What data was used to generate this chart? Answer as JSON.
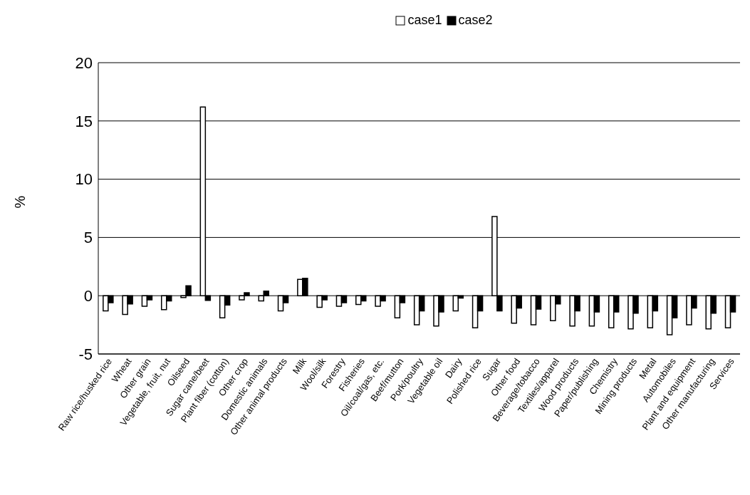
{
  "chart_data": {
    "type": "bar",
    "ylabel": "%",
    "categories": [
      "Raw rice/husked rice",
      "Wheat",
      "Other grain",
      "Vegetable, fruit, nut",
      "Oilseed",
      "Sugar cane/beet",
      "Plant fiber (cotton)",
      "Other crop",
      "Domestic animals",
      "Other animal products",
      "Milk",
      "Wool/silk",
      "Forestry",
      "Fisheries",
      "Oil/coal/gas, etc.",
      "Beef/mutton",
      "Pork/poultry",
      "Vegetable oil",
      "Dairy",
      "Polished rice",
      "Sugar",
      "Other food",
      "Beverage/tobacco",
      "Textiles/apparel",
      "Wood products",
      "Paper/publishing",
      "Chemistry",
      "Mining products",
      "Metal",
      "Automobiles",
      "Plant and equipment",
      "Other manufacturing",
      "Services"
    ],
    "series": [
      {
        "name": "case1",
        "color": "#ffffff",
        "values": [
          -1.3,
          -1.6,
          -0.9,
          -1.2,
          -0.15,
          16.2,
          -1.9,
          -0.35,
          -0.45,
          -1.3,
          1.4,
          -1.0,
          -0.9,
          -0.75,
          -0.9,
          -1.9,
          -2.5,
          -2.6,
          -1.3,
          -2.75,
          6.8,
          -2.35,
          -2.5,
          -2.15,
          -2.6,
          -2.6,
          -2.75,
          -2.85,
          -2.75,
          -3.35,
          -2.5,
          -2.85,
          -2.75
        ]
      },
      {
        "name": "case2",
        "color": "#000000",
        "values": [
          -0.6,
          -0.7,
          -0.35,
          -0.45,
          0.85,
          -0.4,
          -0.8,
          0.25,
          0.4,
          -0.6,
          1.5,
          -0.35,
          -0.6,
          -0.45,
          -0.45,
          -0.6,
          -1.3,
          -1.4,
          -0.2,
          -1.3,
          -1.3,
          -1.05,
          -1.15,
          -0.7,
          -1.3,
          -1.4,
          -1.4,
          -1.5,
          -1.3,
          -1.9,
          -1.05,
          -1.5,
          -1.4
        ]
      }
    ],
    "ylim": [
      -5,
      20
    ],
    "yticks": [
      -5,
      0,
      5,
      10,
      15,
      20
    ],
    "grid": "y",
    "legend": "top"
  }
}
